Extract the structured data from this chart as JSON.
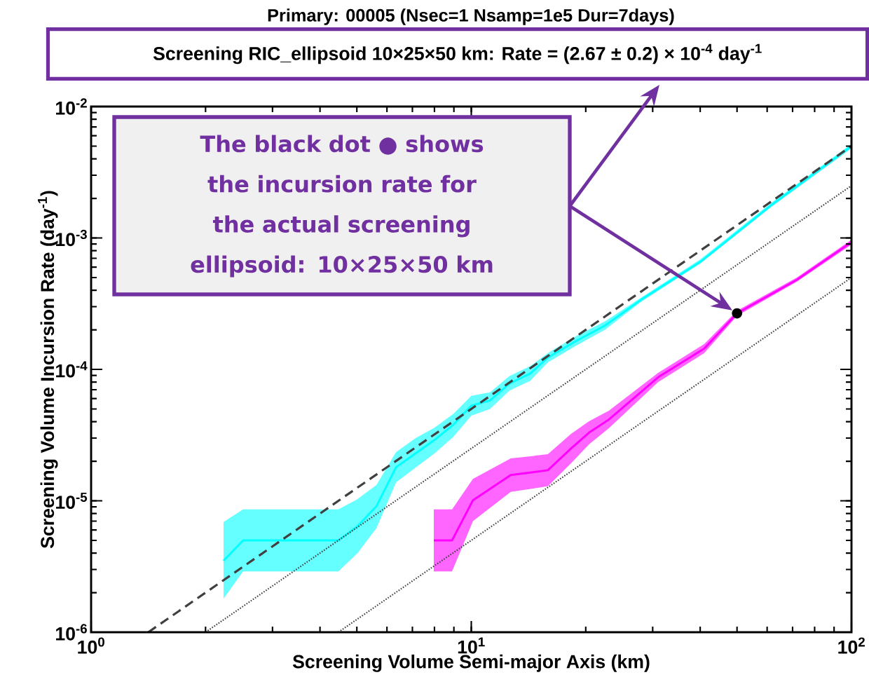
{
  "chart_data": {
    "type": "line",
    "title": "Primary: 00005 (Nsec=1 Nsamp=1e5 Dur=7days)",
    "subtitle": "Screening RIC_ellipsoid 10×25×50 km:  Rate = (2.67 ± 0.2) × 10$^{-4}$ day$^{-1}$",
    "xlabel": "Screening Volume Semi-major Axis (km)",
    "ylabel": "Screening Volume Incursion Rate (day$^{-1}$)",
    "annotations": [
      "The black dot ● shows the incursion rate for the actual screening ellipsoid: 10×25×50 km"
    ],
    "log": "xy",
    "xlim": [
      1,
      100
    ],
    "ylim": [
      1e-06,
      0.01
    ],
    "xticks": [
      {
        "value": 1,
        "label": "10$^{0}$"
      },
      {
        "value": 10,
        "label": "10$^{1}$"
      },
      {
        "value": 100,
        "label": "10$^{2}$"
      }
    ],
    "yticks": [
      {
        "value": 1e-06,
        "label": "10$^{-6}$"
      },
      {
        "value": 1e-05,
        "label": "10$^{-5}$"
      },
      {
        "value": 0.0001,
        "label": "10$^{-4}$"
      },
      {
        "value": 0.001,
        "label": "10$^{-3}$"
      },
      {
        "value": 0.01,
        "label": "10$^{-2}$"
      }
    ],
    "series": [
      {
        "color": "#00ffff",
        "x": [
          2.23,
          2.51,
          4.47,
          5.02,
          5.63,
          6.34,
          7.14,
          8.0,
          8.98,
          10.0,
          11.2,
          12.6,
          14.3,
          15.9,
          18.9,
          22.5,
          27.9,
          40.1,
          61.4,
          100
        ],
        "values": [
          3.5e-06,
          5e-06,
          5e-06,
          6.4e-06,
          9.1e-06,
          1.8e-05,
          2.3e-05,
          2.9e-05,
          3.8e-05,
          5.3e-05,
          5.8e-05,
          7.8e-05,
          9.3e-05,
          0.000123,
          0.000165,
          0.000216,
          0.000337,
          0.00066,
          0.00177,
          0.005
        ],
        "upper": [
          6.9e-06,
          8.6e-06,
          8.6e-06,
          1.03e-05,
          1.32e-05,
          2.35e-05,
          3e-05,
          3.6e-05,
          4.6e-05,
          6.3e-05,
          6.7e-05,
          8.9e-05,
          0.000106,
          0.000133,
          0.00018,
          0.000233,
          0.00035,
          0.00069,
          0.00184,
          0.0052
        ],
        "lower": [
          1.8e-06,
          2.9e-06,
          2.9e-06,
          4e-06,
          6.2e-06,
          1.38e-05,
          1.79e-05,
          2.29e-05,
          3.08e-05,
          4.45e-05,
          5e-05,
          6.9e-05,
          8.2e-05,
          0.000113,
          0.000152,
          0.000201,
          0.000325,
          0.00064,
          0.00171,
          0.0048
        ]
      },
      {
        "color": "#ff00ff",
        "x": [
          7.97,
          8.9,
          10.1,
          12.7,
          15.9,
          18.3,
          20.4,
          23.0,
          31.0,
          41.0,
          50,
          71.8,
          100
        ],
        "values": [
          5e-06,
          5e-06,
          1.01e-05,
          1.57e-05,
          1.71e-05,
          2.5e-05,
          3.3e-05,
          4.15e-05,
          8.7e-05,
          0.000144,
          0.000267,
          0.00048,
          0.00093
        ],
        "upper": [
          8.6e-06,
          8.6e-06,
          1.47e-05,
          2.1e-05,
          2.26e-05,
          3.23e-05,
          4.03e-05,
          4.84e-05,
          9.4e-05,
          0.000156,
          0.00028,
          0.0005,
          0.00097
        ],
        "lower": [
          2.9e-06,
          2.9e-06,
          7e-06,
          1.17e-05,
          1.29e-05,
          1.93e-05,
          2.69e-05,
          3.56e-05,
          8e-05,
          0.000133,
          0.000255,
          0.000464,
          0.00089
        ]
      },
      {
        "type": "line",
        "color": "#404040",
        "line_style": "dashed",
        "x": [
          1.414,
          100
        ],
        "values": [
          1e-06,
          0.005
        ]
      },
      {
        "type": "line",
        "color": "#404040",
        "line_style": "dotted",
        "x": [
          2,
          100
        ],
        "values": [
          1e-06,
          0.0025
        ]
      },
      {
        "type": "line",
        "color": "#404040",
        "line_style": "dotted",
        "x": [
          4.47,
          100
        ],
        "values": [
          1e-06,
          0.0005
        ]
      },
      {
        "type": "scatter",
        "color": "#000000",
        "marker": "circle",
        "x": [
          50
        ],
        "values": [
          0.000267
        ]
      }
    ]
  }
}
